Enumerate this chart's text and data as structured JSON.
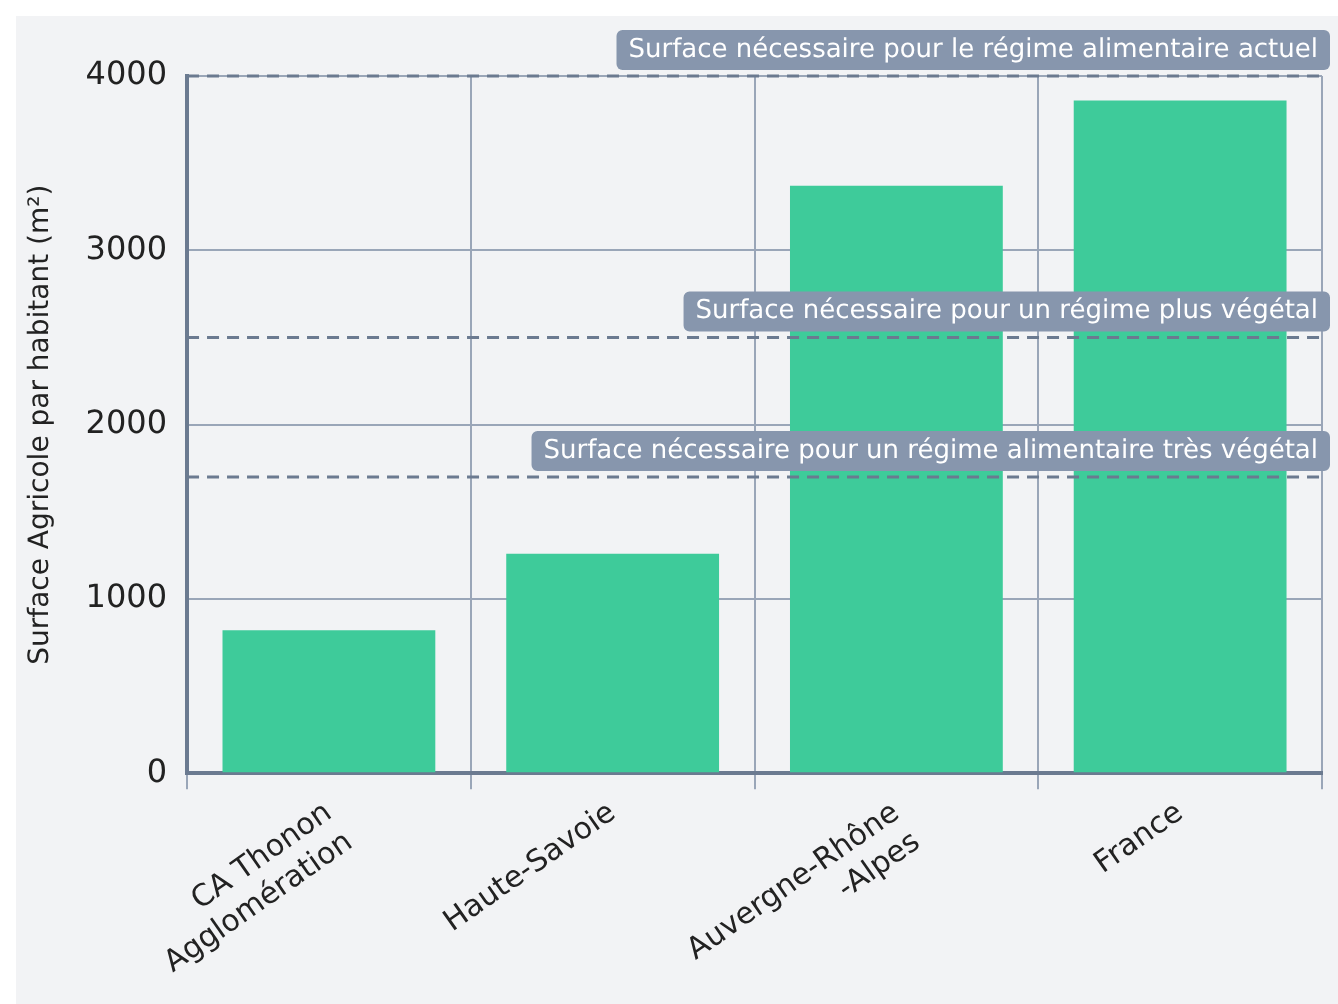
{
  "chart_data": {
    "type": "bar",
    "ylabel": "Surface Agricole par habitant (m²)",
    "categories": [
      "CA Thonon\nAgglomération",
      "Haute-Savoie",
      "Auvergne-Rhône\n-Alpes",
      "France"
    ],
    "values": [
      820,
      1260,
      3370,
      3860
    ],
    "color": "#3ecb9a",
    "ylim": [
      0,
      4000
    ],
    "yticks": [
      0,
      1000,
      2000,
      3000,
      4000
    ],
    "grid": true,
    "legend": false,
    "ref_lines": [
      {
        "axis": "y",
        "value": 4000,
        "label": "Surface nécessaire pour le régime alimentaire actuel",
        "color": "#6b7a90",
        "line_style": "dashed"
      },
      {
        "axis": "y",
        "value": 2500,
        "label": "Surface nécessaire pour un régime plus végétal",
        "color": "#6b7a90",
        "line_style": "dashed"
      },
      {
        "axis": "y",
        "value": 1700,
        "label": "Surface nécessaire pour un régime alimentaire très végétal",
        "color": "#6b7a90",
        "line_style": "dashed"
      }
    ]
  }
}
